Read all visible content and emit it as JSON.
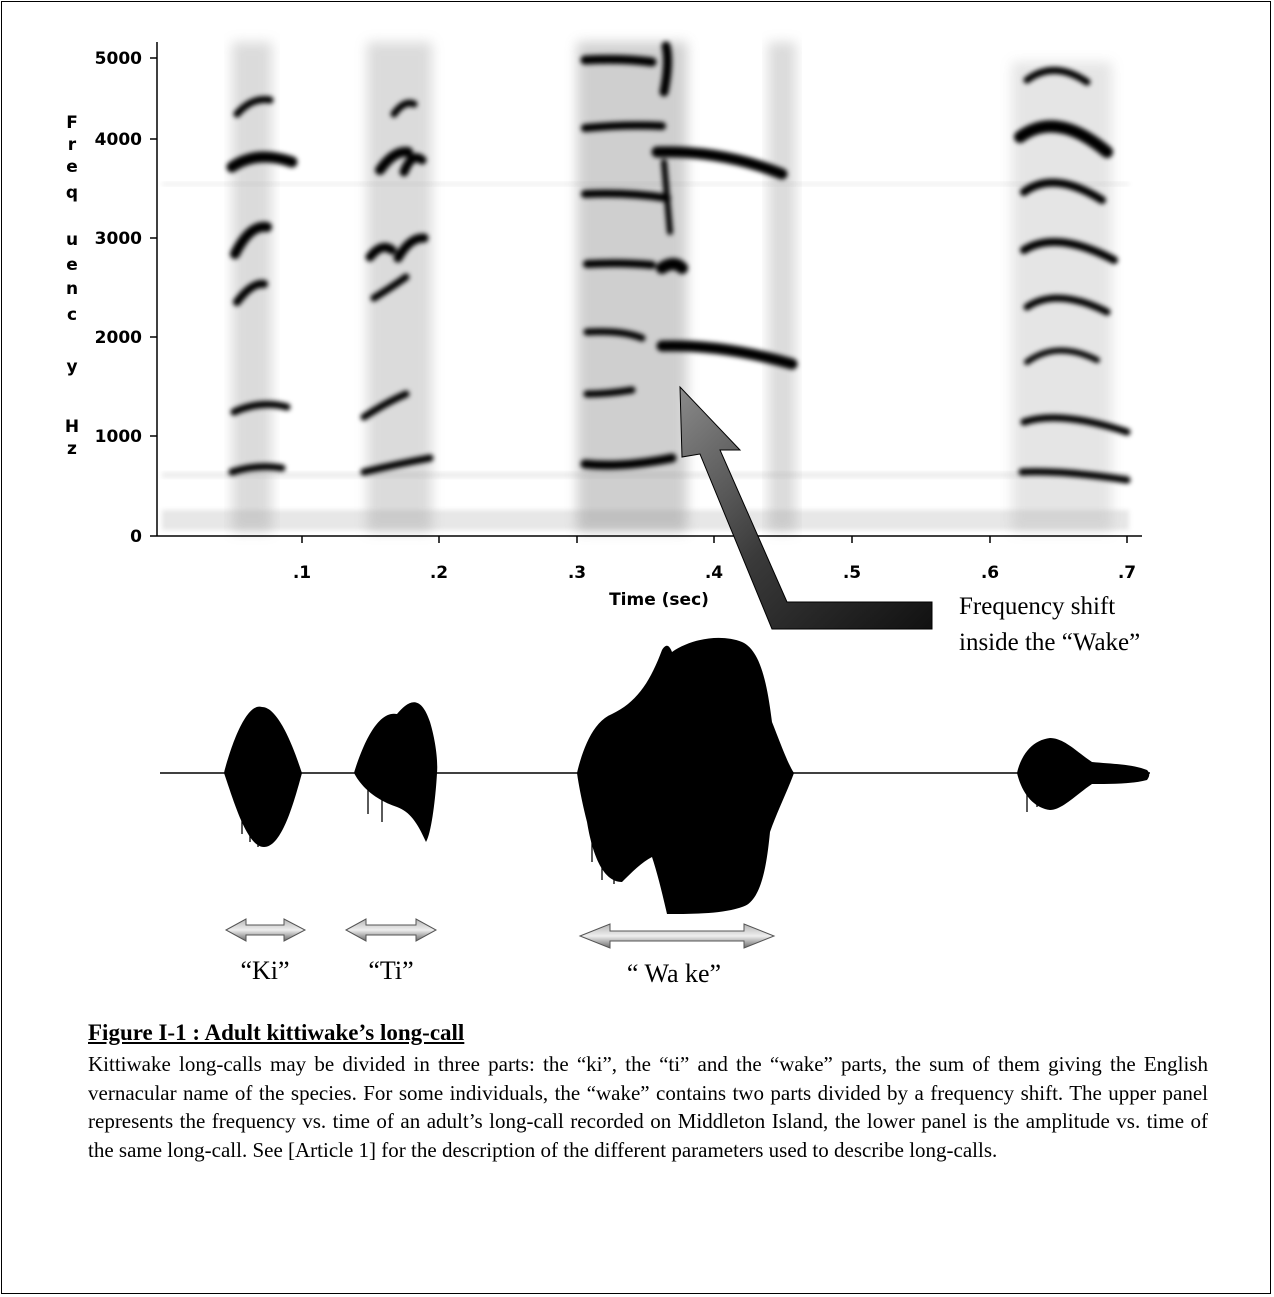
{
  "figure": {
    "spectrogram": {
      "y_axis_letters": [
        "F",
        "r",
        "e",
        "q",
        "u",
        "e",
        "n",
        "c",
        "y",
        "",
        "H",
        "z"
      ],
      "y_ticks": [
        "5000",
        "4000",
        "3000",
        "2000",
        "1000",
        "0"
      ],
      "x_ticks": [
        ".1",
        ".2",
        ".3",
        ".4",
        ".5",
        ".6",
        ".7"
      ],
      "x_label": "Time (sec)"
    },
    "annotation": {
      "line1": "Frequency shift",
      "line2": "inside the “Wake”"
    },
    "segment_labels": {
      "ki": "“Ki”",
      "ti": "“Ti”",
      "wake": "“ Wa ke”"
    }
  },
  "caption": {
    "title": "Figure I-1 : Adult kittiwake’s long-call",
    "body": "Kittiwake long-calls may be divided in three parts: the “ki”, the “ti” and the “wake” parts, the sum of them giving the English vernacular name of the species. For some individuals, the “wake” contains two parts divided by a frequency shift. The upper panel represents the frequency vs. time of an adult’s long-call recorded on Middleton Island, the lower panel is the amplitude vs. time of the same long-call. See [Article 1] for the description of the different parameters used to describe long-calls."
  }
}
